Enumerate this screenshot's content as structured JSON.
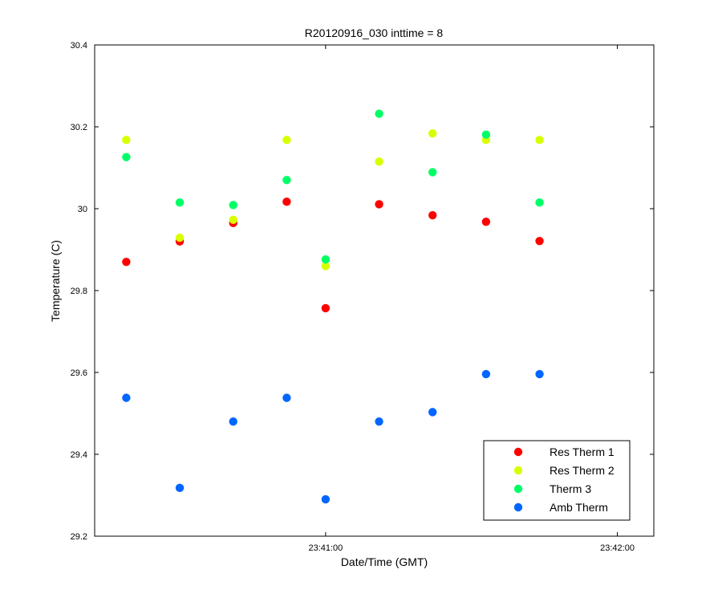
{
  "chart_data": {
    "type": "scatter",
    "title": "R20120916_030 inttime = 8",
    "xlabel": "Date/Time (GMT)",
    "ylabel": "Temperature (C)",
    "x_time_range": [
      "23:40:12.5",
      "23:42:07.5"
    ],
    "ylim": [
      29.2,
      30.4
    ],
    "x_ticks": [
      {
        "time": "23:41:00",
        "label": "23:41:00"
      },
      {
        "time": "23:42:00",
        "label": "23:42:00"
      }
    ],
    "y_ticks": [
      {
        "value": 29.2,
        "label": "29.2"
      },
      {
        "value": 29.4,
        "label": "29.4"
      },
      {
        "value": 29.6,
        "label": "29.6"
      },
      {
        "value": 29.8,
        "label": "29.8"
      },
      {
        "value": 30.0,
        "label": "30"
      },
      {
        "value": 30.2,
        "label": "30.2"
      },
      {
        "value": 30.4,
        "label": "30.4"
      }
    ],
    "x_times": [
      "23:40:19",
      "23:40:30",
      "23:40:41",
      "23:40:52",
      "23:41:00",
      "23:41:11",
      "23:41:22",
      "23:41:33",
      "23:41:44"
    ],
    "grid": false,
    "legend_position": "bottom-right",
    "series": [
      {
        "name": "Res Therm 1",
        "color": "#ff0000",
        "values": [
          29.87,
          29.92,
          29.965,
          30.017,
          29.757,
          30.011,
          29.984,
          29.968,
          29.921
        ]
      },
      {
        "name": "Res Therm 2",
        "color": "#d8ff00",
        "values": [
          30.168,
          29.929,
          29.973,
          30.168,
          29.86,
          30.115,
          30.184,
          30.168,
          30.168
        ]
      },
      {
        "name": "Therm 3",
        "color": "#00ff66",
        "values": [
          30.126,
          30.015,
          30.009,
          30.07,
          29.876,
          30.232,
          30.089,
          30.181,
          30.015
        ]
      },
      {
        "name": "Amb Therm",
        "color": "#0066ff",
        "values": [
          29.538,
          29.318,
          29.48,
          29.538,
          29.29,
          29.48,
          29.503,
          29.596,
          29.596
        ]
      }
    ]
  }
}
